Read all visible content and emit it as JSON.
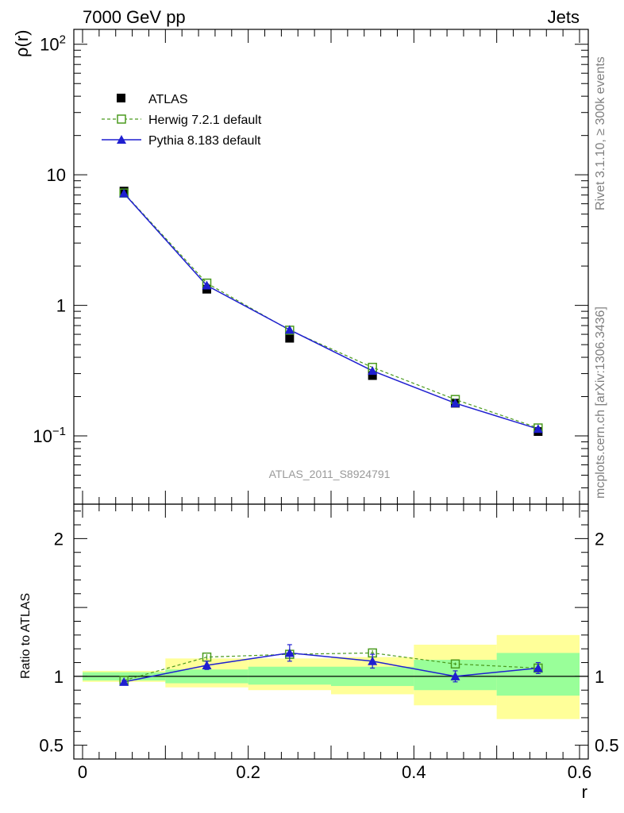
{
  "header": {
    "left": "7000 GeV pp",
    "right": "Jets"
  },
  "side_labels": {
    "rivet": "Rivet 3.1.10, ≥ 300k events",
    "mcplots": "mcplots.cern.ch [arXiv:1306.3436]"
  },
  "analysis_label": "ATLAS_2011_S8924791",
  "legend": {
    "atlas": "ATLAS",
    "herwig": "Herwig 7.2.1 default",
    "pythia": "Pythia 8.183 default"
  },
  "colors": {
    "herwig": "#4a9a1e",
    "pythia": "#1f1fd0",
    "band_inner": "#99ff99",
    "band_outer": "#ffff99"
  },
  "chart_data": [
    {
      "type": "scatter",
      "scale": "log",
      "ylabel": "ρ(r)",
      "ylim": [
        0.03,
        130
      ],
      "xlim": [
        0,
        0.6
      ],
      "y_ticks": [
        {
          "value": 100,
          "base": "10",
          "exp": "2"
        },
        {
          "value": 10,
          "text": "10"
        },
        {
          "value": 1,
          "text": "1"
        },
        {
          "value": 0.1,
          "base": "10",
          "exp": "−1"
        }
      ],
      "series": [
        {
          "name": "ATLAS",
          "x": [
            0.05,
            0.15,
            0.25,
            0.35,
            0.45,
            0.55
          ],
          "values": [
            7.5,
            1.33,
            0.56,
            0.29,
            0.178,
            0.108
          ]
        },
        {
          "name": "Herwig 7.2.1 default",
          "x": [
            0.05,
            0.15,
            0.25,
            0.35,
            0.45,
            0.55
          ],
          "values": [
            7.25,
            1.48,
            0.645,
            0.335,
            0.19,
            0.115
          ]
        },
        {
          "name": "Pythia 8.183 default",
          "x": [
            0.05,
            0.15,
            0.25,
            0.35,
            0.45,
            0.55
          ],
          "values": [
            7.2,
            1.42,
            0.65,
            0.315,
            0.178,
            0.113
          ]
        }
      ]
    },
    {
      "type": "line",
      "ylabel": "Ratio to ATLAS",
      "xlabel": "r",
      "ylim": [
        0.4,
        2.25
      ],
      "xlim": [
        0,
        0.6
      ],
      "y_ticks": [
        {
          "value": 0.5,
          "text": "0.5"
        },
        {
          "value": 1,
          "text": "1"
        },
        {
          "value": 2,
          "text": "2"
        }
      ],
      "x_ticks": [
        {
          "value": 0,
          "text": "0"
        },
        {
          "value": 0.2,
          "text": "0.2"
        },
        {
          "value": 0.4,
          "text": "0.4"
        },
        {
          "value": 0.6,
          "text": "0.6"
        }
      ],
      "bins": [
        0,
        0.1,
        0.2,
        0.3,
        0.4,
        0.5,
        0.6
      ],
      "band_inner": [
        [
          0.97,
          1.03
        ],
        [
          0.95,
          1.05
        ],
        [
          0.94,
          1.07
        ],
        [
          0.93,
          1.07
        ],
        [
          0.9,
          1.12
        ],
        [
          0.86,
          1.17
        ]
      ],
      "band_outer": [
        [
          0.96,
          1.04
        ],
        [
          0.92,
          1.13
        ],
        [
          0.9,
          1.13
        ],
        [
          0.87,
          1.14
        ],
        [
          0.79,
          1.23
        ],
        [
          0.69,
          1.3
        ]
      ],
      "series": [
        {
          "name": "Herwig 7.2.1 default",
          "x": [
            0.05,
            0.15,
            0.25,
            0.35,
            0.45,
            0.55
          ],
          "values": [
            0.97,
            1.14,
            1.16,
            1.17,
            1.09,
            1.06
          ],
          "errors": [
            0.01,
            0.02,
            0.03,
            0.02,
            0.01,
            0.01
          ]
        },
        {
          "name": "Pythia 8.183 default",
          "x": [
            0.05,
            0.15,
            0.25,
            0.35,
            0.45,
            0.55
          ],
          "values": [
            0.96,
            1.08,
            1.17,
            1.11,
            1.0,
            1.06
          ],
          "errors": [
            0.01,
            0.03,
            0.06,
            0.05,
            0.04,
            0.04
          ]
        }
      ]
    }
  ]
}
